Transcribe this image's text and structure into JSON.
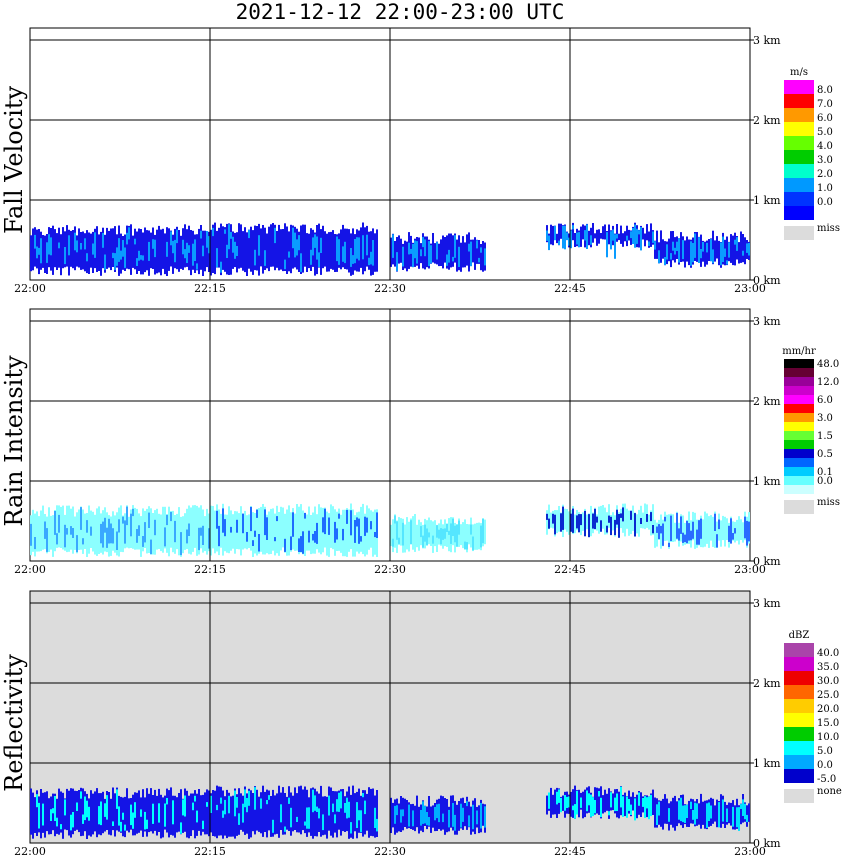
{
  "title": "2021-12-12   22:00-23:00 UTC",
  "chart_data": [
    {
      "type": "heatmap",
      "title": "Fall Velocity",
      "ylabel": "Fall Velocity",
      "xlim": [
        "22:00",
        "23:00"
      ],
      "ylim_km": [
        0,
        3
      ],
      "x_ticks": [
        "22:00",
        "22:15",
        "22:30",
        "22:45",
        "23:00"
      ],
      "y_ticks": [
        "0 km",
        "1 km",
        "2 km",
        "3 km"
      ],
      "grid": true,
      "legend": {
        "unit": "m/s",
        "placement": "right",
        "missing_label": "miss",
        "missing_color": "#dcdcdc",
        "bins": [
          {
            "label": "8.0",
            "color": "#ff00ff"
          },
          {
            "label": "7.0",
            "color": "#ff0000"
          },
          {
            "label": "6.0",
            "color": "#ff9900"
          },
          {
            "label": "5.0",
            "color": "#ffff00"
          },
          {
            "label": "4.0",
            "color": "#66ff00"
          },
          {
            "label": "3.0",
            "color": "#00cc00"
          },
          {
            "label": "2.0",
            "color": "#00ffcc"
          },
          {
            "label": "1.0",
            "color": "#0099ff"
          },
          {
            "label": "0.0",
            "color": "#0033ff"
          },
          {
            "label": "",
            "color": "#0000ff"
          }
        ]
      },
      "echo_segments": [
        {
          "start": "22:00",
          "end": "22:15",
          "base_km": 0.05,
          "top_km": 0.7,
          "fill": "#1414e6",
          "core": "#0a9cff"
        },
        {
          "start": "22:15",
          "end": "22:29",
          "base_km": 0.05,
          "top_km": 0.72,
          "fill": "#1414e6",
          "core": "#0a9cff"
        },
        {
          "start": "22:30",
          "end": "22:38",
          "base_km": 0.1,
          "top_km": 0.6,
          "fill": "#1414e6",
          "core": "#0a9cff"
        },
        {
          "start": "22:43",
          "end": "22:52",
          "base_km": 0.4,
          "top_km": 0.72,
          "fill": "#1414e6",
          "core": "#0a9cff"
        },
        {
          "start": "22:52",
          "end": "23:00",
          "base_km": 0.15,
          "top_km": 0.62,
          "fill": "#1414e6",
          "core": "#0a9cff"
        }
      ]
    },
    {
      "type": "heatmap",
      "title": "Rain Intensity",
      "ylabel": "Rain Intensity",
      "xlim": [
        "22:00",
        "23:00"
      ],
      "ylim_km": [
        0,
        3
      ],
      "x_ticks": [
        "22:00",
        "22:15",
        "22:30",
        "22:45",
        "23:00"
      ],
      "y_ticks": [
        "0 km",
        "1 km",
        "2 km",
        "3 km"
      ],
      "grid": true,
      "legend": {
        "unit": "mm/hr",
        "placement": "right",
        "missing_label": "miss",
        "missing_color": "#dcdcdc",
        "bins": [
          {
            "label": "48.0",
            "color": "#000000"
          },
          {
            "label": "",
            "color": "#660033"
          },
          {
            "label": "12.0",
            "color": "#990099"
          },
          {
            "label": "",
            "color": "#cc00cc"
          },
          {
            "label": "6.0",
            "color": "#ff00ff"
          },
          {
            "label": "",
            "color": "#ff0000"
          },
          {
            "label": "3.0",
            "color": "#ff9900"
          },
          {
            "label": "",
            "color": "#ffff00"
          },
          {
            "label": "1.5",
            "color": "#66ff33"
          },
          {
            "label": "",
            "color": "#00cc00"
          },
          {
            "label": "0.5",
            "color": "#0000cc"
          },
          {
            "label": "",
            "color": "#0066ff"
          },
          {
            "label": "0.1",
            "color": "#00ccff"
          },
          {
            "label": "0.0",
            "color": "#66ffff"
          },
          {
            "label": "",
            "color": "#ccffff"
          }
        ]
      },
      "echo_segments": [
        {
          "start": "22:00",
          "end": "22:15",
          "base_km": 0.05,
          "top_km": 0.7,
          "fill": "#8cffff",
          "core": "#3aa8ff"
        },
        {
          "start": "22:15",
          "end": "22:29",
          "base_km": 0.05,
          "top_km": 0.72,
          "fill": "#8cffff",
          "core": "#1e6cff"
        },
        {
          "start": "22:30",
          "end": "22:38",
          "base_km": 0.1,
          "top_km": 0.6,
          "fill": "#8cffff",
          "core": "#55e6ff"
        },
        {
          "start": "22:43",
          "end": "22:52",
          "base_km": 0.3,
          "top_km": 0.72,
          "fill": "#8cffff",
          "core": "#0a2ad0"
        },
        {
          "start": "22:52",
          "end": "23:00",
          "base_km": 0.15,
          "top_km": 0.62,
          "fill": "#8cffff",
          "core": "#2a6cff"
        }
      ]
    },
    {
      "type": "heatmap",
      "title": "Reflectivity",
      "ylabel": "Reflectivity",
      "xlim": [
        "22:00",
        "23:00"
      ],
      "ylim_km": [
        0,
        3
      ],
      "x_ticks": [
        "22:00",
        "22:15",
        "22:30",
        "22:45",
        "23:00"
      ],
      "y_ticks": [
        "0 km",
        "1 km",
        "2 km",
        "3 km"
      ],
      "grid": true,
      "background": "#dcdcdc",
      "legend": {
        "unit": "dBZ",
        "placement": "right",
        "missing_label": "none",
        "missing_color": "#dcdcdc",
        "bins": [
          {
            "label": "40.0",
            "color": "#aa44aa"
          },
          {
            "label": "35.0",
            "color": "#cc00cc"
          },
          {
            "label": "30.0",
            "color": "#ee0000"
          },
          {
            "label": "25.0",
            "color": "#ff6600"
          },
          {
            "label": "20.0",
            "color": "#ffcc00"
          },
          {
            "label": "15.0",
            "color": "#ffff00"
          },
          {
            "label": "10.0",
            "color": "#00cc00"
          },
          {
            "label": "5.0",
            "color": "#00ffff"
          },
          {
            "label": "0.0",
            "color": "#00aaff"
          },
          {
            "label": "-5.0",
            "color": "#0000cc"
          }
        ]
      },
      "echo_segments": [
        {
          "start": "22:00",
          "end": "22:15",
          "base_km": 0.05,
          "top_km": 0.7,
          "fill": "#1414e6",
          "core": "#00ffff"
        },
        {
          "start": "22:15",
          "end": "22:29",
          "base_km": 0.05,
          "top_km": 0.72,
          "fill": "#1414e6",
          "core": "#00e8ff"
        },
        {
          "start": "22:30",
          "end": "22:38",
          "base_km": 0.1,
          "top_km": 0.6,
          "fill": "#1414e6",
          "core": "#00b0ff"
        },
        {
          "start": "22:43",
          "end": "22:52",
          "base_km": 0.3,
          "top_km": 0.72,
          "fill": "#1414e6",
          "core": "#00ffff"
        },
        {
          "start": "22:52",
          "end": "23:00",
          "base_km": 0.15,
          "top_km": 0.62,
          "fill": "#1414e6",
          "core": "#00e0ff"
        }
      ]
    }
  ]
}
